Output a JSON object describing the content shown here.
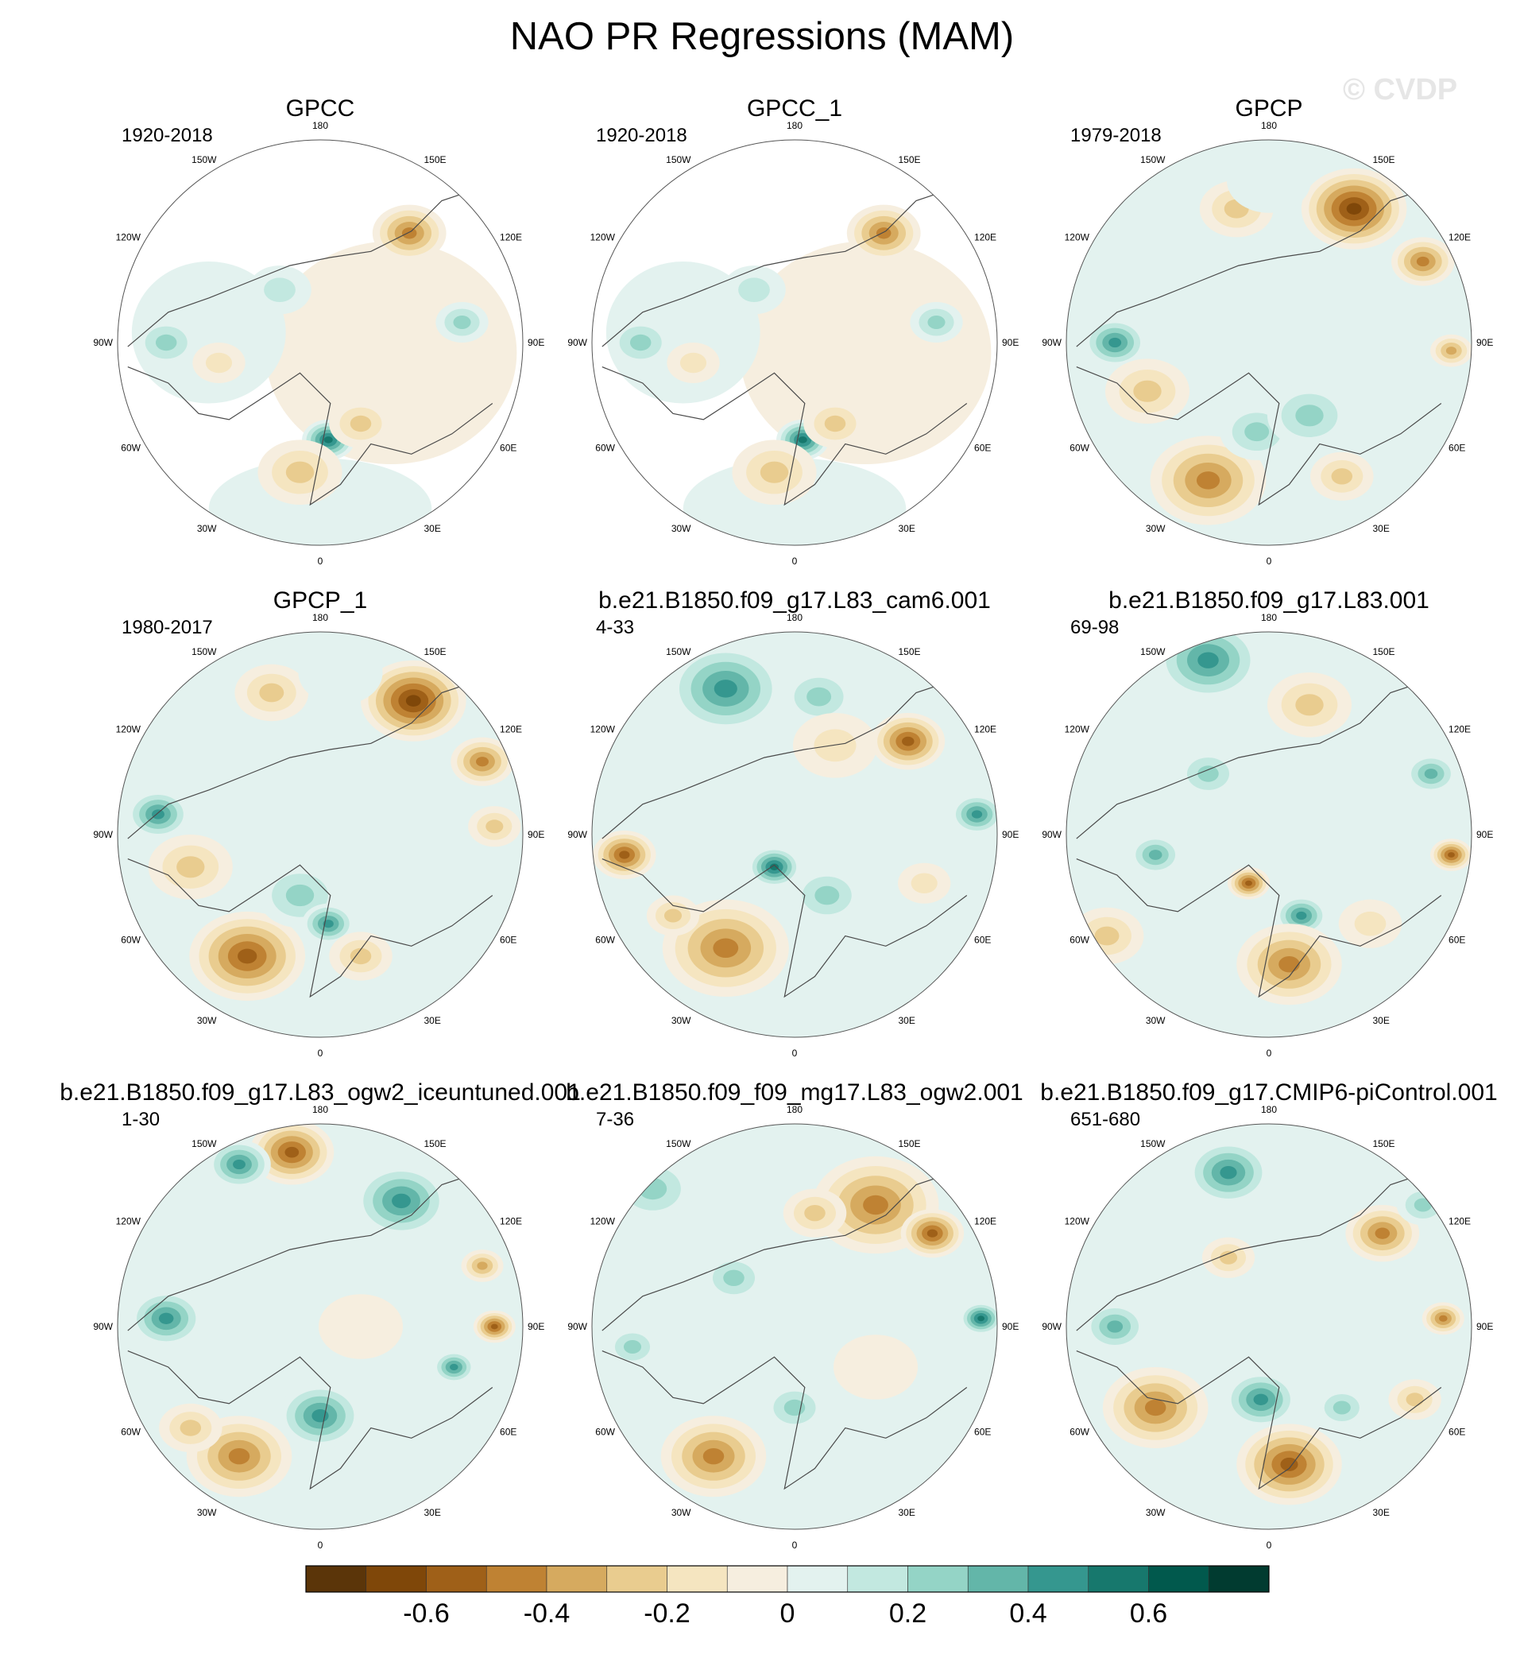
{
  "title": "NAO PR Regressions (MAM)",
  "watermark": "© CVDP",
  "lon_labels": {
    "top": "180",
    "bottom": "0",
    "left": "90W",
    "right": "90E",
    "upper_left_1": "150W",
    "upper_left_2": "120W",
    "lower_left_1": "60W",
    "lower_left_2": "30W",
    "upper_right_1": "150E",
    "upper_right_2": "120E",
    "lower_right_1": "60E",
    "lower_right_2": "30E"
  },
  "panels": [
    {
      "title": "GPCC",
      "period": "1920-2018",
      "coverage": "land",
      "blobs": [
        [
          0.72,
          0.23,
          0.07,
          -0.5
        ],
        [
          0.52,
          0.74,
          0.05,
          0.6
        ],
        [
          0.45,
          0.82,
          0.08,
          -0.3
        ],
        [
          0.12,
          0.5,
          0.06,
          0.25
        ],
        [
          0.25,
          0.55,
          0.05,
          -0.2
        ],
        [
          0.6,
          0.7,
          0.06,
          -0.25
        ],
        [
          0.4,
          0.37,
          0.06,
          0.2
        ],
        [
          0.7,
          0.5,
          0.08,
          -0.1
        ],
        [
          0.85,
          0.45,
          0.05,
          0.25
        ]
      ]
    },
    {
      "title": "GPCC_1",
      "period": "1920-2018",
      "coverage": "land",
      "blobs": [
        [
          0.72,
          0.23,
          0.07,
          -0.5
        ],
        [
          0.52,
          0.74,
          0.05,
          0.6
        ],
        [
          0.45,
          0.82,
          0.08,
          -0.3
        ],
        [
          0.12,
          0.5,
          0.06,
          0.25
        ],
        [
          0.25,
          0.55,
          0.05,
          -0.2
        ],
        [
          0.6,
          0.7,
          0.06,
          -0.25
        ],
        [
          0.4,
          0.37,
          0.06,
          0.2
        ],
        [
          0.7,
          0.5,
          0.08,
          -0.1
        ],
        [
          0.85,
          0.45,
          0.05,
          0.25
        ]
      ]
    },
    {
      "title": "GPCP",
      "period": "1979-2018",
      "coverage": "full",
      "blobs": [
        [
          0.71,
          0.17,
          0.1,
          -0.65
        ],
        [
          0.88,
          0.3,
          0.06,
          -0.45
        ],
        [
          0.42,
          0.17,
          0.07,
          -0.35
        ],
        [
          0.12,
          0.5,
          0.06,
          0.5
        ],
        [
          0.2,
          0.62,
          0.08,
          -0.35
        ],
        [
          0.35,
          0.84,
          0.11,
          -0.5
        ],
        [
          0.47,
          0.72,
          0.07,
          0.35
        ],
        [
          0.6,
          0.68,
          0.08,
          0.3
        ],
        [
          0.68,
          0.83,
          0.06,
          -0.25
        ],
        [
          0.5,
          0.1,
          0.08,
          0.15
        ],
        [
          0.95,
          0.52,
          0.04,
          -0.4
        ]
      ]
    },
    {
      "title": "GPCP_1",
      "period": "1980-2017",
      "coverage": "full",
      "blobs": [
        [
          0.73,
          0.17,
          0.1,
          -0.65
        ],
        [
          0.9,
          0.32,
          0.06,
          -0.45
        ],
        [
          0.38,
          0.15,
          0.07,
          -0.35
        ],
        [
          0.1,
          0.45,
          0.06,
          0.5
        ],
        [
          0.18,
          0.58,
          0.08,
          -0.35
        ],
        [
          0.32,
          0.8,
          0.11,
          -0.55
        ],
        [
          0.45,
          0.65,
          0.08,
          0.35
        ],
        [
          0.52,
          0.72,
          0.05,
          0.45
        ],
        [
          0.6,
          0.8,
          0.06,
          -0.25
        ],
        [
          0.55,
          0.1,
          0.08,
          0.15
        ],
        [
          0.93,
          0.48,
          0.05,
          -0.3
        ]
      ]
    },
    {
      "title": "b.e21.B1850.f09_g17.L83_cam6.001",
      "period": "4-33",
      "coverage": "full",
      "blobs": [
        [
          0.33,
          0.14,
          0.11,
          0.5
        ],
        [
          0.56,
          0.16,
          0.07,
          0.25
        ],
        [
          0.78,
          0.27,
          0.07,
          -0.55
        ],
        [
          0.95,
          0.45,
          0.05,
          0.45
        ],
        [
          0.08,
          0.55,
          0.06,
          -0.55
        ],
        [
          0.33,
          0.78,
          0.12,
          -0.45
        ],
        [
          0.45,
          0.58,
          0.05,
          0.55
        ],
        [
          0.58,
          0.65,
          0.07,
          0.3
        ],
        [
          0.2,
          0.7,
          0.05,
          -0.3
        ],
        [
          0.82,
          0.62,
          0.05,
          -0.2
        ],
        [
          0.6,
          0.28,
          0.08,
          -0.2
        ]
      ]
    },
    {
      "title": "b.e21.B1850.f09_g17.L83.001",
      "period": "69-98",
      "coverage": "full",
      "blobs": [
        [
          0.35,
          0.07,
          0.1,
          0.5
        ],
        [
          0.35,
          0.35,
          0.06,
          0.35
        ],
        [
          0.6,
          0.18,
          0.08,
          -0.35
        ],
        [
          0.22,
          0.55,
          0.05,
          0.4
        ],
        [
          0.1,
          0.75,
          0.07,
          -0.35
        ],
        [
          0.95,
          0.55,
          0.04,
          -0.55
        ],
        [
          0.9,
          0.35,
          0.05,
          0.4
        ],
        [
          0.45,
          0.62,
          0.04,
          -0.55
        ],
        [
          0.58,
          0.7,
          0.05,
          0.45
        ],
        [
          0.55,
          0.82,
          0.1,
          -0.45
        ],
        [
          0.75,
          0.72,
          0.06,
          -0.2
        ]
      ]
    },
    {
      "title": "b.e21.B1850.f09_g17.L83_ogw2_iceuntuned.001",
      "period": "1-30",
      "coverage": "full",
      "blobs": [
        [
          0.43,
          0.07,
          0.08,
          -0.6
        ],
        [
          0.3,
          0.1,
          0.06,
          0.45
        ],
        [
          0.7,
          0.19,
          0.09,
          0.5
        ],
        [
          0.9,
          0.35,
          0.04,
          -0.4
        ],
        [
          0.93,
          0.5,
          0.04,
          -0.6
        ],
        [
          0.83,
          0.6,
          0.04,
          0.45
        ],
        [
          0.12,
          0.48,
          0.07,
          0.45
        ],
        [
          0.5,
          0.72,
          0.08,
          0.45
        ],
        [
          0.3,
          0.82,
          0.1,
          -0.5
        ],
        [
          0.18,
          0.75,
          0.06,
          -0.3
        ],
        [
          0.6,
          0.5,
          0.08,
          -0.15
        ]
      ]
    },
    {
      "title": "b.e21.B1850.f09_f09_mg17.L83_ogw2.001",
      "period": "7-36",
      "coverage": "full",
      "blobs": [
        [
          0.15,
          0.16,
          0.08,
          0.35
        ],
        [
          0.7,
          0.2,
          0.12,
          -0.5
        ],
        [
          0.84,
          0.27,
          0.06,
          -0.6
        ],
        [
          0.96,
          0.48,
          0.04,
          0.55
        ],
        [
          0.35,
          0.38,
          0.06,
          0.25
        ],
        [
          0.1,
          0.55,
          0.05,
          0.3
        ],
        [
          0.3,
          0.82,
          0.1,
          -0.5
        ],
        [
          0.5,
          0.7,
          0.06,
          0.3
        ],
        [
          0.55,
          0.22,
          0.06,
          -0.3
        ],
        [
          0.7,
          0.6,
          0.08,
          -0.15
        ]
      ]
    },
    {
      "title": "b.e21.B1850.f09_g17.CMIP6-piControl.001",
      "period": "651-680",
      "coverage": "full",
      "blobs": [
        [
          0.4,
          0.12,
          0.08,
          0.45
        ],
        [
          0.78,
          0.27,
          0.07,
          -0.45
        ],
        [
          0.4,
          0.33,
          0.05,
          -0.35
        ],
        [
          0.88,
          0.2,
          0.05,
          0.35
        ],
        [
          0.93,
          0.48,
          0.04,
          -0.45
        ],
        [
          0.12,
          0.5,
          0.06,
          0.4
        ],
        [
          0.22,
          0.7,
          0.1,
          -0.5
        ],
        [
          0.48,
          0.68,
          0.07,
          0.45
        ],
        [
          0.55,
          0.84,
          0.1,
          -0.55
        ],
        [
          0.68,
          0.7,
          0.05,
          0.35
        ],
        [
          0.86,
          0.68,
          0.05,
          -0.3
        ]
      ]
    }
  ],
  "colorbar": {
    "colors": [
      "#5b3509",
      "#7f4709",
      "#9f6018",
      "#bf8233",
      "#d6aa5f",
      "#e9cc8f",
      "#f5e5c0",
      "#f6eedf",
      "#e3f2ef",
      "#c2e8e0",
      "#94d4c6",
      "#63b6a9",
      "#35978f",
      "#17786d",
      "#01594d",
      "#013b30"
    ],
    "tick_labels": [
      "-0.6",
      "-0.4",
      "-0.2",
      "0",
      "0.2",
      "0.4",
      "0.6"
    ],
    "tick_values": [
      -0.6,
      -0.4,
      -0.2,
      0,
      0.2,
      0.4,
      0.6
    ],
    "levels": [
      -0.7,
      -0.6,
      -0.5,
      -0.4,
      -0.3,
      -0.2,
      -0.1,
      0,
      0.1,
      0.2,
      0.3,
      0.4,
      0.5,
      0.6,
      0.7
    ]
  }
}
